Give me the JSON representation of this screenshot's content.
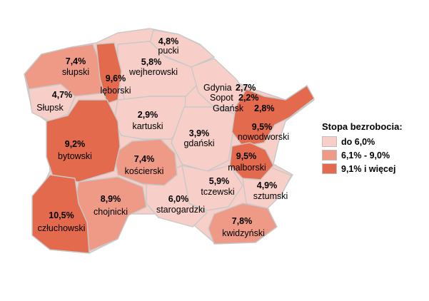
{
  "legend": {
    "title": "Stopa bezrobocia:",
    "items": [
      {
        "label": "do 6,0%",
        "color": "#f7cfc8"
      },
      {
        "label": "6,1% - 9,0%",
        "color": "#ee9a86"
      },
      {
        "label": "9,1% i więcej",
        "color": "#e36a4c"
      }
    ]
  },
  "regions": {
    "slupski": {
      "name": "słupski",
      "value": "7,4%"
    },
    "slupsk": {
      "name": "Słupsk",
      "value": "4,7%"
    },
    "leborski": {
      "name": "lęborski",
      "value": "9,6%"
    },
    "pucki": {
      "name": "pucki",
      "value": "4,8%"
    },
    "wejherowski": {
      "name": "wejherowski",
      "value": "5,8%"
    },
    "gdynia": {
      "name": "Gdynia",
      "value": "2,7%"
    },
    "sopot": {
      "name": "Sopot",
      "value": "2,2%"
    },
    "gdansk": {
      "name": "Gdańsk",
      "value": "2,8%"
    },
    "kartuski": {
      "name": "kartuski",
      "value": "2,9%"
    },
    "bytowski": {
      "name": "bytowski",
      "value": "9,2%"
    },
    "gdanski": {
      "name": "gdański",
      "value": "3,9%"
    },
    "nowodworski": {
      "name": "nowodworski",
      "value": "9,5%"
    },
    "koscierski": {
      "name": "kościerski",
      "value": "7,4%"
    },
    "malborski": {
      "name": "malborski",
      "value": "9,5%"
    },
    "tczewski": {
      "name": "tczewski",
      "value": "5,9%"
    },
    "sztumski": {
      "name": "sztumski",
      "value": "4,9%"
    },
    "chojnicki": {
      "name": "chojnicki",
      "value": "8,9%"
    },
    "starogardzki": {
      "name": "starogardzki",
      "value": "6,0%"
    },
    "czluchowski": {
      "name": "człuchowski",
      "value": "10,5%"
    },
    "kwidzynski": {
      "name": "kwidzyński",
      "value": "7,8%"
    }
  }
}
